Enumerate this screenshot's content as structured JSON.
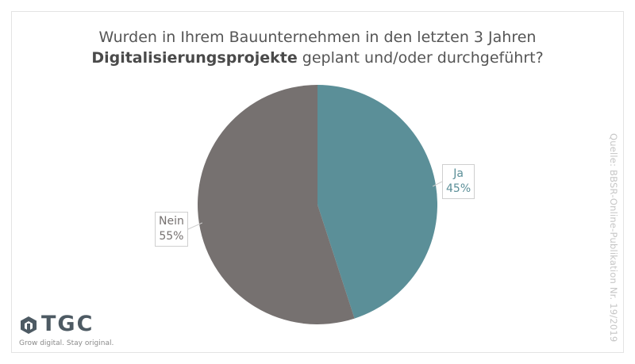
{
  "chart_data": {
    "type": "pie",
    "title_line1": "Wurden in Ihrem Bauunternehmen in den letzten 3 Jahren",
    "title_bold": "Digitalisierungsprojekte",
    "title_rest": " geplant und/oder durchgeführt?",
    "slices": [
      {
        "label": "Ja",
        "value": 45,
        "value_label": "45%",
        "color": "#5b8f98"
      },
      {
        "label": "Nein",
        "value": 55,
        "value_label": "55%",
        "color": "#767170"
      }
    ]
  },
  "source": "Quelle: BBSR-Online-Publikation Nr. 19/2019",
  "logo": {
    "name": "TGC",
    "tagline": "Grow digital. Stay original."
  },
  "colors": {
    "logo_dark": "#4d5a63",
    "logo_accent": "#5b8f98"
  }
}
